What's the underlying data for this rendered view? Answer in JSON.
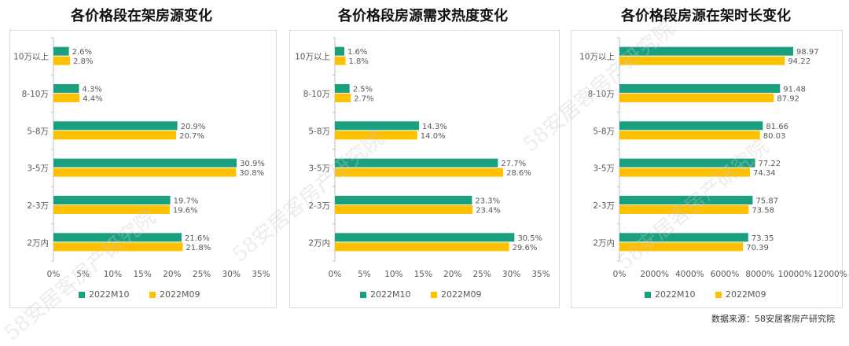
{
  "colors": {
    "m10": "#1a9f7f",
    "m09": "#ffc000",
    "axis": "#bfbfbf",
    "text": "#595959"
  },
  "legend": {
    "m10": "2022M10",
    "m09": "2022M09"
  },
  "source_text": "数据来源：58安居客房产研究院",
  "watermark_text": "58安居客房产研究院",
  "chart_data": [
    {
      "type": "bar",
      "orientation": "horizontal",
      "title": "各价格段在架房源变化",
      "categories": [
        "10万以上",
        "8-10万",
        "5-8万",
        "3-5万",
        "2-3万",
        "2万内"
      ],
      "series": [
        {
          "name": "2022M10",
          "values": [
            2.6,
            4.3,
            20.9,
            30.9,
            19.7,
            21.6
          ],
          "labels": [
            "2.6%",
            "4.3%",
            "20.9%",
            "30.9%",
            "19.7%",
            "21.6%"
          ]
        },
        {
          "name": "2022M09",
          "values": [
            2.8,
            4.4,
            20.7,
            30.8,
            19.6,
            21.8
          ],
          "labels": [
            "2.8%",
            "4.4%",
            "20.7%",
            "30.8%",
            "19.6%",
            "21.8%"
          ]
        }
      ],
      "xlim": [
        0,
        35
      ],
      "xticks": [
        "0%",
        "5%",
        "10%",
        "15%",
        "20%",
        "25%",
        "30%",
        "35%"
      ],
      "grid": false,
      "legend_position": "bottom"
    },
    {
      "type": "bar",
      "orientation": "horizontal",
      "title": "各价格段房源需求热度变化",
      "categories": [
        "10万以上",
        "8-10万",
        "5-8万",
        "3-5万",
        "2-3万",
        "2万内"
      ],
      "series": [
        {
          "name": "2022M10",
          "values": [
            1.6,
            2.5,
            14.3,
            27.7,
            23.3,
            30.5
          ],
          "labels": [
            "1.6%",
            "2.5%",
            "14.3%",
            "27.7%",
            "23.3%",
            "30.5%"
          ]
        },
        {
          "name": "2022M09",
          "values": [
            1.8,
            2.7,
            14.0,
            28.6,
            23.4,
            29.6
          ],
          "labels": [
            "1.8%",
            "2.7%",
            "14.0%",
            "28.6%",
            "23.4%",
            "29.6%"
          ]
        }
      ],
      "xlim": [
        0,
        35
      ],
      "xticks": [
        "0%",
        "5%",
        "10%",
        "15%",
        "20%",
        "25%",
        "30%",
        "35%"
      ],
      "grid": false,
      "legend_position": "bottom"
    },
    {
      "type": "bar",
      "orientation": "horizontal",
      "title": "各价格段房源在架时长变化",
      "categories": [
        "10万以上",
        "8-10万",
        "5-8万",
        "3-5万",
        "2-3万",
        "2万内"
      ],
      "series": [
        {
          "name": "2022M10",
          "values": [
            98.97,
            91.48,
            81.66,
            77.22,
            75.87,
            73.35
          ],
          "labels": [
            "98.97",
            "91.48",
            "81.66",
            "77.22",
            "75.87",
            "73.35"
          ]
        },
        {
          "name": "2022M09",
          "values": [
            94.22,
            87.92,
            80.03,
            74.34,
            73.58,
            70.39
          ],
          "labels": [
            "94.22",
            "87.92",
            "80.03",
            "74.34",
            "73.58",
            "70.39"
          ]
        }
      ],
      "xlim": [
        0,
        120
      ],
      "xticks": [
        "0%",
        "2000%",
        "4000%",
        "6000%",
        "8000%",
        "10000%",
        "12000%"
      ],
      "grid": false,
      "legend_position": "bottom"
    }
  ]
}
